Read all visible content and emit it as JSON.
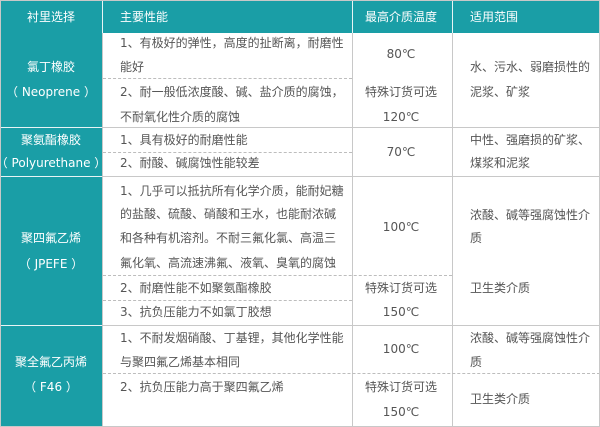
{
  "header": {
    "col1": "衬里选择",
    "col2": "主要性能",
    "col3": "最高介质温度",
    "col4": "适用范围"
  },
  "rows": [
    {
      "name": [
        "氯丁橡胶",
        "（ Neoprene ）"
      ],
      "props": [
        [
          "1、有极好的弹性，高度的扯断离，耐磨性",
          "能好"
        ],
        [
          "2、耐一般低浓度酸、碱、盐介质的腐蚀，",
          "不耐氧化性介质的腐蚀"
        ]
      ],
      "temp": [
        "80℃",
        "特殊订货可选",
        "120℃"
      ],
      "use": [
        "水、污水、弱磨损性的",
        "泥浆、矿浆"
      ]
    },
    {
      "name": [
        "聚氨酯橡胶",
        "（ Polyurethane ）"
      ],
      "props": [
        [
          "1、具有极好的耐磨性能"
        ],
        [
          "2、耐酸、碱腐蚀性能较差"
        ]
      ],
      "temp": [
        "70℃"
      ],
      "use": [
        "中性、强磨损的矿浆、",
        "煤浆和泥浆"
      ]
    },
    {
      "name": [
        "聚四氟乙烯",
        "（ JPEFE ）"
      ],
      "props": [
        [
          "1、几乎可以抵抗所有化学介质，能耐妃糖",
          "的盐酸、硫酸、硝酸和王水，也能耐浓碱",
          "和各种有机溶剂。不耐三氟化氯、高温三",
          "氟化氧、高流速沸氟、液氧、臭氧的腐蚀"
        ],
        [
          "2、耐磨性能不如聚氨酯橡胶"
        ],
        [
          "3、抗负压能力不如氯丁胶想"
        ]
      ],
      "temp": [
        "100℃",
        "特殊订货可选",
        "150℃"
      ],
      "use": [
        "浓酸、碱等强腐蚀性介",
        "质",
        "卫生类介质"
      ]
    },
    {
      "name": [
        "聚全氟乙丙烯",
        "（ F46 ）"
      ],
      "props": [
        [
          "1、不耐发烟硝酸、丁基锂，其他化学性能",
          "与聚四氟乙烯基本相同"
        ],
        [
          "2、抗负压能力高于聚四氟乙烯"
        ]
      ],
      "temp": [
        "100℃",
        "特殊订货可选",
        "150℃"
      ],
      "use": [
        "浓酸、碱等强腐蚀性介",
        "质",
        "卫生类介质"
      ]
    }
  ],
  "colors": {
    "header_bg": "#1a9ea6",
    "text": "#555555",
    "border": "#c8c8c8"
  }
}
